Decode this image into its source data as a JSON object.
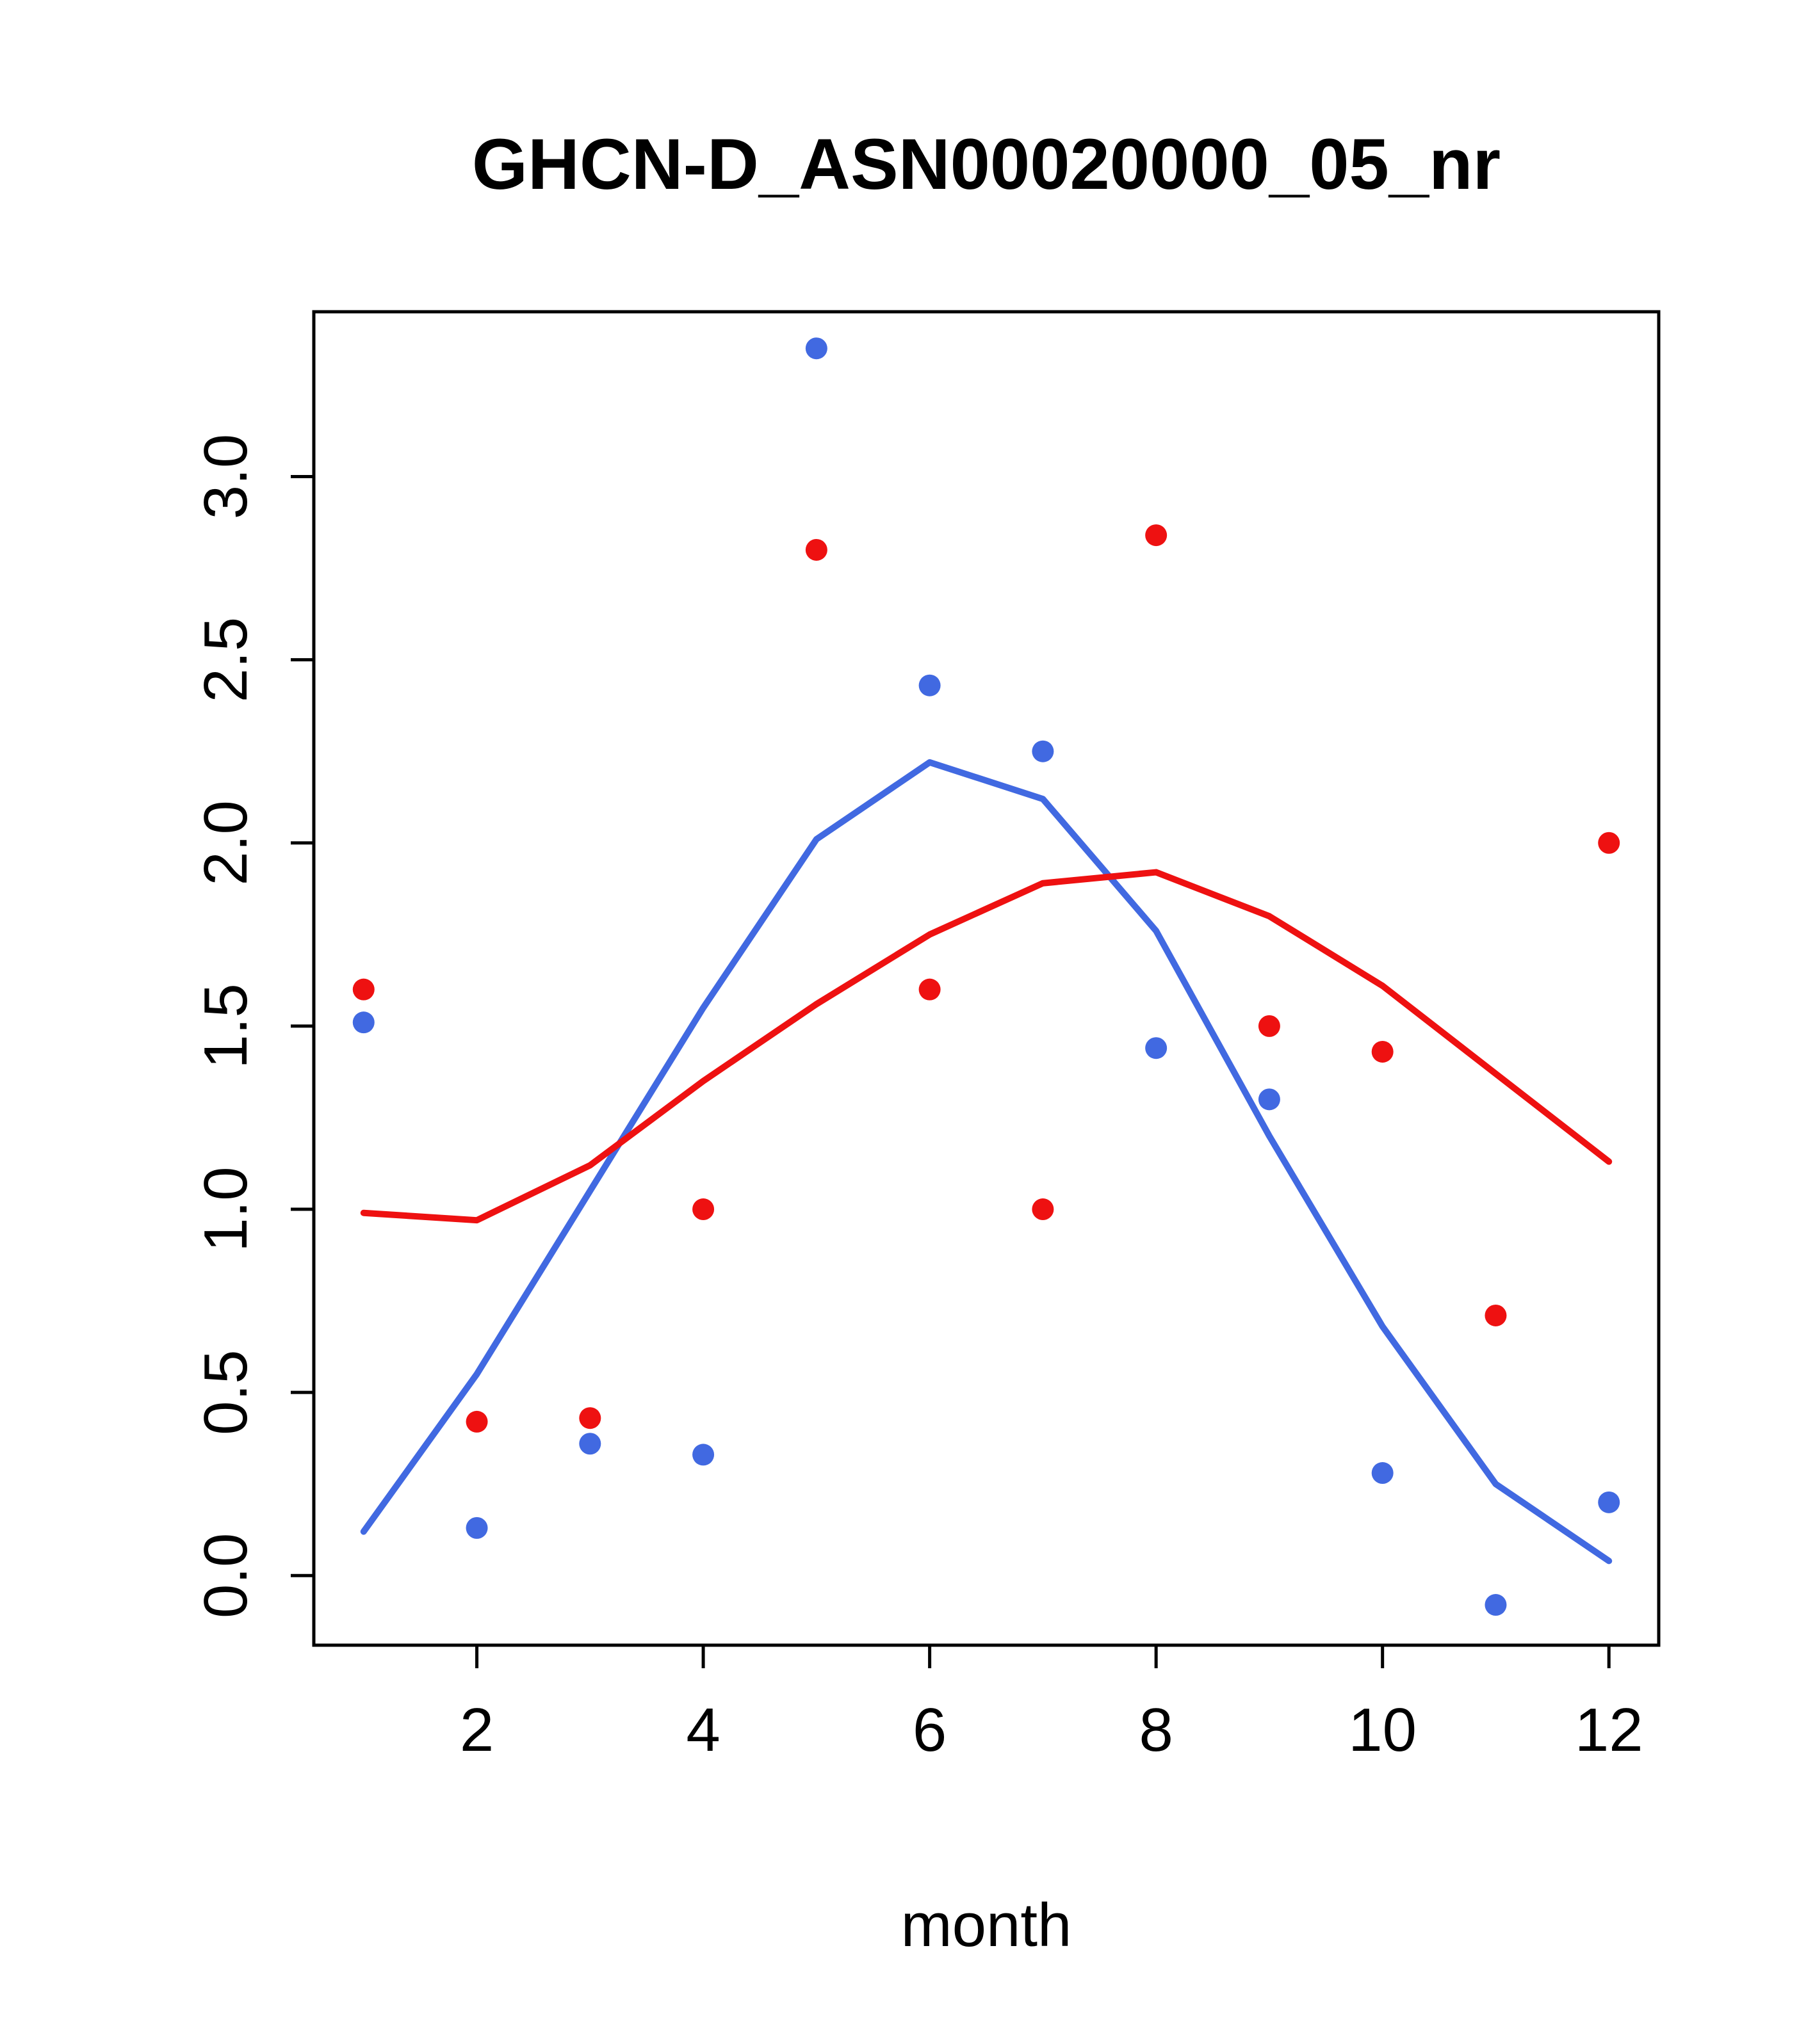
{
  "chart_data": {
    "type": "scatter",
    "title": "GHCN-D_ASN00020000_05_nr",
    "xlabel": "month",
    "ylabel": "",
    "grid": false,
    "legend": "none",
    "xlim": [
      0.56,
      12.44
    ],
    "ylim": [
      -0.19,
      3.45
    ],
    "x_ticks": [
      2,
      4,
      6,
      8,
      10,
      12
    ],
    "y_ticks": [
      0.0,
      0.5,
      1.0,
      1.5,
      2.0,
      2.5,
      3.0
    ],
    "x": [
      1,
      2,
      3,
      4,
      5,
      6,
      7,
      8,
      9,
      10,
      11,
      12
    ],
    "colors": {
      "blue": "#4169e1",
      "red": "#ee1111"
    },
    "series": [
      {
        "name": "blue-points",
        "type": "points",
        "color": "#4169e1",
        "values": [
          1.51,
          0.13,
          0.36,
          0.33,
          3.35,
          2.43,
          2.25,
          1.44,
          1.3,
          0.28,
          -0.08,
          0.2
        ]
      },
      {
        "name": "red-points",
        "type": "points",
        "color": "#ee1111",
        "values": [
          1.6,
          0.42,
          0.43,
          1.0,
          2.8,
          1.6,
          1.0,
          2.84,
          1.5,
          1.43,
          0.71,
          2.0
        ]
      },
      {
        "name": "blue-smooth-line",
        "type": "line",
        "color": "#4169e1",
        "values": [
          0.12,
          0.55,
          1.05,
          1.55,
          2.01,
          2.22,
          2.12,
          1.76,
          1.2,
          0.68,
          0.25,
          0.04
        ]
      },
      {
        "name": "red-smooth-line",
        "type": "line",
        "color": "#ee1111",
        "values": [
          0.99,
          0.97,
          1.12,
          1.35,
          1.56,
          1.75,
          1.89,
          1.92,
          1.8,
          1.61,
          1.37,
          1.13
        ]
      }
    ]
  }
}
